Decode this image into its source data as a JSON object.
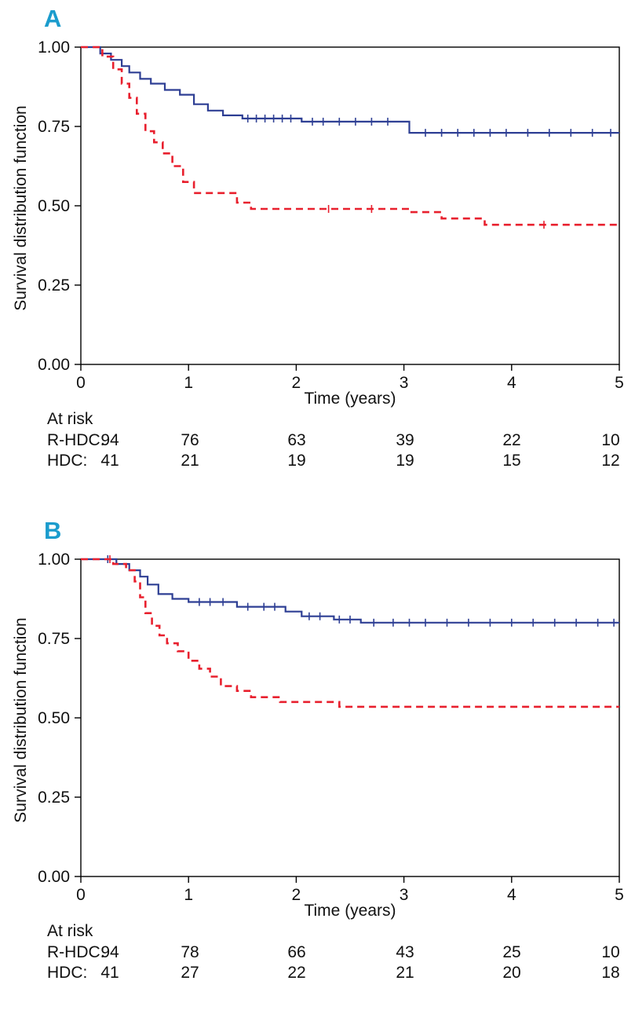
{
  "colors": {
    "panel_label": "#1b9ccd",
    "rhdc": "#2e3f94",
    "hdc": "#e8202e",
    "axis": "#000000"
  },
  "panels": [
    {
      "label": "A",
      "ylabel": "Survival distribution function",
      "xlabel": "Time (years)",
      "at_risk_title": "At risk",
      "at_risk_rows": [
        {
          "name": "R-HDC:",
          "counts": [
            "94",
            "76",
            "63",
            "39",
            "22",
            "10"
          ]
        },
        {
          "name": "HDC:",
          "counts": [
            "41",
            "21",
            "19",
            "19",
            "15",
            "12"
          ]
        }
      ]
    },
    {
      "label": "B",
      "ylabel": "Survival distribution function",
      "xlabel": "Time (years)",
      "at_risk_title": "At risk",
      "at_risk_rows": [
        {
          "name": "R-HDC:",
          "counts": [
            "94",
            "78",
            "66",
            "43",
            "25",
            "10"
          ]
        },
        {
          "name": "HDC:",
          "counts": [
            "41",
            "27",
            "22",
            "21",
            "20",
            "18"
          ]
        }
      ]
    }
  ],
  "chart_data": [
    {
      "type": "line",
      "subtype": "kaplan-meier-step",
      "panel": "A",
      "xlabel": "Time (years)",
      "ylabel": "Survival distribution function",
      "xlim": [
        0,
        5
      ],
      "ylim": [
        0,
        1
      ],
      "xticks": [
        0,
        1,
        2,
        3,
        4,
        5
      ],
      "xtick_labels": [
        "0",
        "1",
        "2",
        "3",
        "4",
        "5"
      ],
      "yticks": [
        0,
        0.25,
        0.5,
        0.75,
        1
      ],
      "ytick_labels": [
        "0.00",
        "0.25",
        "0.50",
        "0.75",
        "1.00"
      ],
      "grid": false,
      "legend": "none",
      "series": [
        {
          "name": "R-HDC",
          "line_style": "solid",
          "color_key": "rhdc",
          "x": [
            0,
            0.18,
            0.28,
            0.38,
            0.45,
            0.55,
            0.65,
            0.78,
            0.92,
            1.05,
            1.18,
            1.32,
            1.5,
            2.05,
            3.05
          ],
          "y": [
            1.0,
            0.98,
            0.96,
            0.94,
            0.92,
            0.9,
            0.885,
            0.865,
            0.85,
            0.82,
            0.8,
            0.785,
            0.775,
            0.765,
            0.73
          ],
          "censor_x": [
            1.55,
            1.63,
            1.71,
            1.79,
            1.87,
            1.95,
            2.15,
            2.25,
            2.4,
            2.55,
            2.7,
            2.85,
            3.2,
            3.35,
            3.5,
            3.65,
            3.8,
            3.95,
            4.15,
            4.35,
            4.55,
            4.75,
            4.92
          ]
        },
        {
          "name": "HDC",
          "line_style": "dashed",
          "color_key": "hdc",
          "x": [
            0,
            0.2,
            0.3,
            0.38,
            0.45,
            0.52,
            0.6,
            0.68,
            0.76,
            0.85,
            0.95,
            1.05,
            1.45,
            1.58,
            3.05,
            3.35,
            3.75
          ],
          "y": [
            1.0,
            0.97,
            0.93,
            0.885,
            0.84,
            0.79,
            0.735,
            0.7,
            0.665,
            0.625,
            0.575,
            0.54,
            0.51,
            0.49,
            0.48,
            0.46,
            0.44
          ],
          "censor_x": [
            2.3,
            2.7,
            4.3
          ]
        }
      ],
      "at_risk": {
        "R-HDC": [
          94,
          76,
          63,
          39,
          22,
          10
        ],
        "HDC": [
          41,
          21,
          19,
          19,
          15,
          12
        ]
      }
    },
    {
      "type": "line",
      "subtype": "kaplan-meier-step",
      "panel": "B",
      "xlabel": "Time (years)",
      "ylabel": "Survival distribution function",
      "xlim": [
        0,
        5
      ],
      "ylim": [
        0,
        1
      ],
      "xticks": [
        0,
        1,
        2,
        3,
        4,
        5
      ],
      "xtick_labels": [
        "0",
        "1",
        "2",
        "3",
        "4",
        "5"
      ],
      "yticks": [
        0,
        0.25,
        0.5,
        0.75,
        1
      ],
      "ytick_labels": [
        "0.00",
        "0.25",
        "0.50",
        "0.75",
        "1.00"
      ],
      "grid": false,
      "legend": "none",
      "series": [
        {
          "name": "R-HDC",
          "line_style": "solid",
          "color_key": "rhdc",
          "x": [
            0,
            0.33,
            0.45,
            0.55,
            0.62,
            0.72,
            0.85,
            1.0,
            1.45,
            1.9,
            2.05,
            2.35,
            2.6
          ],
          "y": [
            1.0,
            0.985,
            0.965,
            0.945,
            0.92,
            0.89,
            0.875,
            0.865,
            0.85,
            0.835,
            0.82,
            0.81,
            0.8
          ],
          "censor_x": [
            0.25,
            1.1,
            1.2,
            1.32,
            1.55,
            1.7,
            1.8,
            2.12,
            2.22,
            2.4,
            2.5,
            2.72,
            2.9,
            3.05,
            3.2,
            3.4,
            3.6,
            3.8,
            4.0,
            4.2,
            4.4,
            4.6,
            4.8,
            4.95
          ]
        },
        {
          "name": "HDC",
          "line_style": "dashed",
          "color_key": "hdc",
          "x": [
            0,
            0.3,
            0.42,
            0.5,
            0.55,
            0.6,
            0.66,
            0.73,
            0.8,
            0.9,
            1.0,
            1.1,
            1.2,
            1.3,
            1.45,
            1.58,
            1.85,
            2.4
          ],
          "y": [
            1.0,
            0.985,
            0.965,
            0.93,
            0.88,
            0.83,
            0.79,
            0.76,
            0.735,
            0.71,
            0.68,
            0.655,
            0.63,
            0.6,
            0.585,
            0.565,
            0.55,
            0.535
          ],
          "censor_x": [
            0.27
          ]
        }
      ],
      "at_risk": {
        "R-HDC": [
          94,
          78,
          66,
          43,
          25,
          10
        ],
        "HDC": [
          41,
          27,
          22,
          21,
          20,
          18
        ]
      }
    }
  ]
}
